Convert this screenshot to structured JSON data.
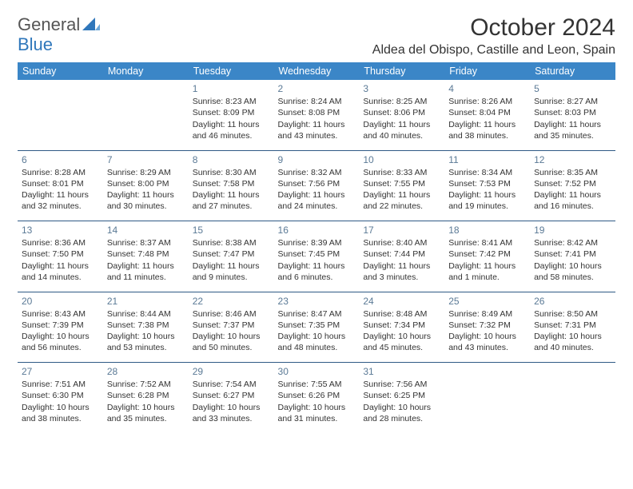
{
  "logo": {
    "word1": "General",
    "word2": "Blue"
  },
  "title": "October 2024",
  "subtitle": "Aldea del Obispo, Castille and Leon, Spain",
  "colors": {
    "header_bg": "#3b86c7",
    "header_text": "#ffffff",
    "daynum": "#5b7a96",
    "separator": "#2f5a85",
    "logo_blue": "#2f77bb",
    "text": "#333333",
    "background": "#ffffff"
  },
  "fonts": {
    "title_size": 30,
    "subtitle_size": 16,
    "header_size": 12.5,
    "body_size": 10.5,
    "daynum_size": 12
  },
  "weekdays": [
    "Sunday",
    "Monday",
    "Tuesday",
    "Wednesday",
    "Thursday",
    "Friday",
    "Saturday"
  ],
  "weeks": [
    [
      null,
      null,
      {
        "day": "1",
        "sunrise": "Sunrise: 8:23 AM",
        "sunset": "Sunset: 8:09 PM",
        "daylight": "Daylight: 11 hours and 46 minutes."
      },
      {
        "day": "2",
        "sunrise": "Sunrise: 8:24 AM",
        "sunset": "Sunset: 8:08 PM",
        "daylight": "Daylight: 11 hours and 43 minutes."
      },
      {
        "day": "3",
        "sunrise": "Sunrise: 8:25 AM",
        "sunset": "Sunset: 8:06 PM",
        "daylight": "Daylight: 11 hours and 40 minutes."
      },
      {
        "day": "4",
        "sunrise": "Sunrise: 8:26 AM",
        "sunset": "Sunset: 8:04 PM",
        "daylight": "Daylight: 11 hours and 38 minutes."
      },
      {
        "day": "5",
        "sunrise": "Sunrise: 8:27 AM",
        "sunset": "Sunset: 8:03 PM",
        "daylight": "Daylight: 11 hours and 35 minutes."
      }
    ],
    [
      {
        "day": "6",
        "sunrise": "Sunrise: 8:28 AM",
        "sunset": "Sunset: 8:01 PM",
        "daylight": "Daylight: 11 hours and 32 minutes."
      },
      {
        "day": "7",
        "sunrise": "Sunrise: 8:29 AM",
        "sunset": "Sunset: 8:00 PM",
        "daylight": "Daylight: 11 hours and 30 minutes."
      },
      {
        "day": "8",
        "sunrise": "Sunrise: 8:30 AM",
        "sunset": "Sunset: 7:58 PM",
        "daylight": "Daylight: 11 hours and 27 minutes."
      },
      {
        "day": "9",
        "sunrise": "Sunrise: 8:32 AM",
        "sunset": "Sunset: 7:56 PM",
        "daylight": "Daylight: 11 hours and 24 minutes."
      },
      {
        "day": "10",
        "sunrise": "Sunrise: 8:33 AM",
        "sunset": "Sunset: 7:55 PM",
        "daylight": "Daylight: 11 hours and 22 minutes."
      },
      {
        "day": "11",
        "sunrise": "Sunrise: 8:34 AM",
        "sunset": "Sunset: 7:53 PM",
        "daylight": "Daylight: 11 hours and 19 minutes."
      },
      {
        "day": "12",
        "sunrise": "Sunrise: 8:35 AM",
        "sunset": "Sunset: 7:52 PM",
        "daylight": "Daylight: 11 hours and 16 minutes."
      }
    ],
    [
      {
        "day": "13",
        "sunrise": "Sunrise: 8:36 AM",
        "sunset": "Sunset: 7:50 PM",
        "daylight": "Daylight: 11 hours and 14 minutes."
      },
      {
        "day": "14",
        "sunrise": "Sunrise: 8:37 AM",
        "sunset": "Sunset: 7:48 PM",
        "daylight": "Daylight: 11 hours and 11 minutes."
      },
      {
        "day": "15",
        "sunrise": "Sunrise: 8:38 AM",
        "sunset": "Sunset: 7:47 PM",
        "daylight": "Daylight: 11 hours and 9 minutes."
      },
      {
        "day": "16",
        "sunrise": "Sunrise: 8:39 AM",
        "sunset": "Sunset: 7:45 PM",
        "daylight": "Daylight: 11 hours and 6 minutes."
      },
      {
        "day": "17",
        "sunrise": "Sunrise: 8:40 AM",
        "sunset": "Sunset: 7:44 PM",
        "daylight": "Daylight: 11 hours and 3 minutes."
      },
      {
        "day": "18",
        "sunrise": "Sunrise: 8:41 AM",
        "sunset": "Sunset: 7:42 PM",
        "daylight": "Daylight: 11 hours and 1 minute."
      },
      {
        "day": "19",
        "sunrise": "Sunrise: 8:42 AM",
        "sunset": "Sunset: 7:41 PM",
        "daylight": "Daylight: 10 hours and 58 minutes."
      }
    ],
    [
      {
        "day": "20",
        "sunrise": "Sunrise: 8:43 AM",
        "sunset": "Sunset: 7:39 PM",
        "daylight": "Daylight: 10 hours and 56 minutes."
      },
      {
        "day": "21",
        "sunrise": "Sunrise: 8:44 AM",
        "sunset": "Sunset: 7:38 PM",
        "daylight": "Daylight: 10 hours and 53 minutes."
      },
      {
        "day": "22",
        "sunrise": "Sunrise: 8:46 AM",
        "sunset": "Sunset: 7:37 PM",
        "daylight": "Daylight: 10 hours and 50 minutes."
      },
      {
        "day": "23",
        "sunrise": "Sunrise: 8:47 AM",
        "sunset": "Sunset: 7:35 PM",
        "daylight": "Daylight: 10 hours and 48 minutes."
      },
      {
        "day": "24",
        "sunrise": "Sunrise: 8:48 AM",
        "sunset": "Sunset: 7:34 PM",
        "daylight": "Daylight: 10 hours and 45 minutes."
      },
      {
        "day": "25",
        "sunrise": "Sunrise: 8:49 AM",
        "sunset": "Sunset: 7:32 PM",
        "daylight": "Daylight: 10 hours and 43 minutes."
      },
      {
        "day": "26",
        "sunrise": "Sunrise: 8:50 AM",
        "sunset": "Sunset: 7:31 PM",
        "daylight": "Daylight: 10 hours and 40 minutes."
      }
    ],
    [
      {
        "day": "27",
        "sunrise": "Sunrise: 7:51 AM",
        "sunset": "Sunset: 6:30 PM",
        "daylight": "Daylight: 10 hours and 38 minutes."
      },
      {
        "day": "28",
        "sunrise": "Sunrise: 7:52 AM",
        "sunset": "Sunset: 6:28 PM",
        "daylight": "Daylight: 10 hours and 35 minutes."
      },
      {
        "day": "29",
        "sunrise": "Sunrise: 7:54 AM",
        "sunset": "Sunset: 6:27 PM",
        "daylight": "Daylight: 10 hours and 33 minutes."
      },
      {
        "day": "30",
        "sunrise": "Sunrise: 7:55 AM",
        "sunset": "Sunset: 6:26 PM",
        "daylight": "Daylight: 10 hours and 31 minutes."
      },
      {
        "day": "31",
        "sunrise": "Sunrise: 7:56 AM",
        "sunset": "Sunset: 6:25 PM",
        "daylight": "Daylight: 10 hours and 28 minutes."
      },
      null,
      null
    ]
  ]
}
